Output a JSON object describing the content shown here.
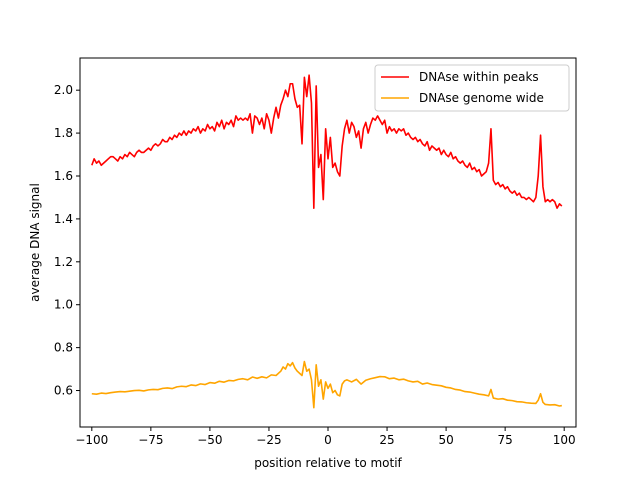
{
  "chart_data": {
    "type": "line",
    "title": "",
    "xlabel": "position relative to motif",
    "ylabel": "average DNA signal",
    "xlim": [
      -105,
      105
    ],
    "ylim": [
      0.43,
      2.15
    ],
    "xticks": [
      -100,
      -75,
      -50,
      -25,
      0,
      25,
      50,
      75,
      100
    ],
    "yticks": [
      0.6,
      0.8,
      1.0,
      1.2,
      1.4,
      1.6,
      1.8,
      2.0
    ],
    "xtick_labels": [
      "−100",
      "−75",
      "−50",
      "−25",
      "0",
      "25",
      "50",
      "75",
      "100"
    ],
    "ytick_labels": [
      "0.6",
      "0.8",
      "1.0",
      "1.2",
      "1.4",
      "1.6",
      "1.8",
      "2.0"
    ],
    "grid": false,
    "legend": "top-right",
    "series": [
      {
        "name": "DNAse within peaks",
        "color": "#ff0000",
        "points": [
          [
            -100,
            1.65
          ],
          [
            -99,
            1.68
          ],
          [
            -98,
            1.66
          ],
          [
            -97,
            1.67
          ],
          [
            -96,
            1.65
          ],
          [
            -95,
            1.66
          ],
          [
            -94,
            1.67
          ],
          [
            -93,
            1.68
          ],
          [
            -92,
            1.69
          ],
          [
            -91,
            1.69
          ],
          [
            -90,
            1.68
          ],
          [
            -89,
            1.67
          ],
          [
            -88,
            1.69
          ],
          [
            -87,
            1.68
          ],
          [
            -86,
            1.7
          ],
          [
            -85,
            1.69
          ],
          [
            -84,
            1.71
          ],
          [
            -83,
            1.7
          ],
          [
            -82,
            1.69
          ],
          [
            -81,
            1.71
          ],
          [
            -80,
            1.72
          ],
          [
            -79,
            1.71
          ],
          [
            -78,
            1.71
          ],
          [
            -77,
            1.72
          ],
          [
            -76,
            1.73
          ],
          [
            -75,
            1.72
          ],
          [
            -74,
            1.74
          ],
          [
            -73,
            1.75
          ],
          [
            -72,
            1.74
          ],
          [
            -71,
            1.75
          ],
          [
            -70,
            1.77
          ],
          [
            -69,
            1.76
          ],
          [
            -68,
            1.76
          ],
          [
            -67,
            1.78
          ],
          [
            -66,
            1.77
          ],
          [
            -65,
            1.79
          ],
          [
            -64,
            1.78
          ],
          [
            -63,
            1.8
          ],
          [
            -62,
            1.79
          ],
          [
            -61,
            1.81
          ],
          [
            -60,
            1.79
          ],
          [
            -59,
            1.81
          ],
          [
            -58,
            1.8
          ],
          [
            -57,
            1.82
          ],
          [
            -56,
            1.81
          ],
          [
            -55,
            1.83
          ],
          [
            -54,
            1.8
          ],
          [
            -53,
            1.82
          ],
          [
            -52,
            1.81
          ],
          [
            -51,
            1.84
          ],
          [
            -50,
            1.82
          ],
          [
            -49,
            1.83
          ],
          [
            -48,
            1.81
          ],
          [
            -47,
            1.85
          ],
          [
            -46,
            1.83
          ],
          [
            -45,
            1.86
          ],
          [
            -44,
            1.82
          ],
          [
            -43,
            1.85
          ],
          [
            -42,
            1.84
          ],
          [
            -41,
            1.86
          ],
          [
            -40,
            1.83
          ],
          [
            -39,
            1.88
          ],
          [
            -38,
            1.86
          ],
          [
            -37,
            1.87
          ],
          [
            -36,
            1.86
          ],
          [
            -35,
            1.87
          ],
          [
            -34,
            1.86
          ],
          [
            -33,
            1.89
          ],
          [
            -32,
            1.8
          ],
          [
            -31,
            1.88
          ],
          [
            -30,
            1.87
          ],
          [
            -29,
            1.84
          ],
          [
            -28,
            1.87
          ],
          [
            -27,
            1.82
          ],
          [
            -26,
            1.89
          ],
          [
            -25,
            1.86
          ],
          [
            -24,
            1.8
          ],
          [
            -23,
            1.87
          ],
          [
            -22,
            1.92
          ],
          [
            -21,
            1.87
          ],
          [
            -20,
            1.93
          ],
          [
            -19,
            1.96
          ],
          [
            -18,
            2.0
          ],
          [
            -17,
            1.97
          ],
          [
            -16,
            2.03
          ],
          [
            -15,
            2.03
          ],
          [
            -14,
            1.96
          ],
          [
            -13,
            1.92
          ],
          [
            -12,
            1.93
          ],
          [
            -11,
            1.75
          ],
          [
            -10,
            2.06
          ],
          [
            -9,
            1.97
          ],
          [
            -8,
            2.07
          ],
          [
            -7,
            1.94
          ],
          [
            -6,
            1.45
          ],
          [
            -5,
            2.02
          ],
          [
            -4,
            1.64
          ],
          [
            -3,
            1.7
          ],
          [
            -2,
            1.49
          ],
          [
            -1,
            1.82
          ],
          [
            0,
            1.68
          ],
          [
            1,
            1.78
          ],
          [
            2,
            1.64
          ],
          [
            3,
            1.66
          ],
          [
            4,
            1.62
          ],
          [
            5,
            1.6
          ],
          [
            6,
            1.74
          ],
          [
            7,
            1.82
          ],
          [
            8,
            1.86
          ],
          [
            9,
            1.8
          ],
          [
            10,
            1.85
          ],
          [
            11,
            1.83
          ],
          [
            12,
            1.78
          ],
          [
            13,
            1.81
          ],
          [
            14,
            1.73
          ],
          [
            15,
            1.82
          ],
          [
            16,
            1.85
          ],
          [
            17,
            1.8
          ],
          [
            18,
            1.84
          ],
          [
            19,
            1.87
          ],
          [
            20,
            1.86
          ],
          [
            21,
            1.88
          ],
          [
            22,
            1.86
          ],
          [
            23,
            1.84
          ],
          [
            24,
            1.86
          ],
          [
            25,
            1.8
          ],
          [
            26,
            1.83
          ],
          [
            27,
            1.81
          ],
          [
            28,
            1.82
          ],
          [
            29,
            1.8
          ],
          [
            30,
            1.82
          ],
          [
            31,
            1.81
          ],
          [
            32,
            1.82
          ],
          [
            33,
            1.79
          ],
          [
            34,
            1.8
          ],
          [
            35,
            1.78
          ],
          [
            36,
            1.77
          ],
          [
            37,
            1.78
          ],
          [
            38,
            1.76
          ],
          [
            39,
            1.77
          ],
          [
            40,
            1.75
          ],
          [
            41,
            1.74
          ],
          [
            42,
            1.76
          ],
          [
            43,
            1.72
          ],
          [
            44,
            1.74
          ],
          [
            45,
            1.73
          ],
          [
            46,
            1.72
          ],
          [
            47,
            1.73
          ],
          [
            48,
            1.7
          ],
          [
            49,
            1.72
          ],
          [
            50,
            1.7
          ],
          [
            51,
            1.69
          ],
          [
            52,
            1.71
          ],
          [
            53,
            1.68
          ],
          [
            54,
            1.69
          ],
          [
            55,
            1.67
          ],
          [
            56,
            1.66
          ],
          [
            57,
            1.67
          ],
          [
            58,
            1.65
          ],
          [
            59,
            1.64
          ],
          [
            60,
            1.66
          ],
          [
            61,
            1.63
          ],
          [
            62,
            1.64
          ],
          [
            63,
            1.62
          ],
          [
            64,
            1.63
          ],
          [
            65,
            1.6
          ],
          [
            66,
            1.61
          ],
          [
            67,
            1.62
          ],
          [
            68,
            1.66
          ],
          [
            69,
            1.82
          ],
          [
            70,
            1.58
          ],
          [
            71,
            1.56
          ],
          [
            72,
            1.57
          ],
          [
            73,
            1.55
          ],
          [
            74,
            1.56
          ],
          [
            75,
            1.54
          ],
          [
            76,
            1.55
          ],
          [
            77,
            1.53
          ],
          [
            78,
            1.52
          ],
          [
            79,
            1.53
          ],
          [
            80,
            1.51
          ],
          [
            81,
            1.52
          ],
          [
            82,
            1.5
          ],
          [
            83,
            1.5
          ],
          [
            84,
            1.49
          ],
          [
            85,
            1.5
          ],
          [
            86,
            1.49
          ],
          [
            87,
            1.48
          ],
          [
            88,
            1.5
          ],
          [
            89,
            1.6
          ],
          [
            90,
            1.79
          ],
          [
            91,
            1.55
          ],
          [
            92,
            1.48
          ],
          [
            93,
            1.49
          ],
          [
            94,
            1.48
          ],
          [
            95,
            1.49
          ],
          [
            96,
            1.48
          ],
          [
            97,
            1.45
          ],
          [
            98,
            1.47
          ],
          [
            99,
            1.46
          ]
        ]
      },
      {
        "name": "DNAse genome wide",
        "color": "#ffa500",
        "points": [
          [
            -100,
            0.585
          ],
          [
            -98,
            0.583
          ],
          [
            -96,
            0.588
          ],
          [
            -94,
            0.586
          ],
          [
            -92,
            0.59
          ],
          [
            -90,
            0.593
          ],
          [
            -88,
            0.595
          ],
          [
            -86,
            0.594
          ],
          [
            -84,
            0.597
          ],
          [
            -82,
            0.6
          ],
          [
            -80,
            0.601
          ],
          [
            -78,
            0.598
          ],
          [
            -76,
            0.603
          ],
          [
            -74,
            0.605
          ],
          [
            -72,
            0.604
          ],
          [
            -70,
            0.61
          ],
          [
            -68,
            0.612
          ],
          [
            -66,
            0.609
          ],
          [
            -64,
            0.617
          ],
          [
            -62,
            0.62
          ],
          [
            -60,
            0.618
          ],
          [
            -58,
            0.626
          ],
          [
            -56,
            0.623
          ],
          [
            -54,
            0.631
          ],
          [
            -52,
            0.628
          ],
          [
            -50,
            0.637
          ],
          [
            -48,
            0.634
          ],
          [
            -46,
            0.643
          ],
          [
            -44,
            0.639
          ],
          [
            -42,
            0.647
          ],
          [
            -40,
            0.645
          ],
          [
            -38,
            0.652
          ],
          [
            -36,
            0.655
          ],
          [
            -34,
            0.65
          ],
          [
            -32,
            0.663
          ],
          [
            -30,
            0.657
          ],
          [
            -28,
            0.664
          ],
          [
            -26,
            0.659
          ],
          [
            -24,
            0.673
          ],
          [
            -22,
            0.67
          ],
          [
            -20,
            0.69
          ],
          [
            -19,
            0.71
          ],
          [
            -18,
            0.7
          ],
          [
            -17,
            0.725
          ],
          [
            -16,
            0.715
          ],
          [
            -15,
            0.73
          ],
          [
            -14,
            0.705
          ],
          [
            -13,
            0.69
          ],
          [
            -12,
            0.68
          ],
          [
            -11,
            0.67
          ],
          [
            -10,
            0.735
          ],
          [
            -9,
            0.69
          ],
          [
            -8,
            0.7
          ],
          [
            -7,
            0.65
          ],
          [
            -6,
            0.52
          ],
          [
            -5,
            0.72
          ],
          [
            -4,
            0.62
          ],
          [
            -3,
            0.65
          ],
          [
            -2,
            0.56
          ],
          [
            -1,
            0.64
          ],
          [
            0,
            0.61
          ],
          [
            1,
            0.63
          ],
          [
            2,
            0.59
          ],
          [
            3,
            0.6
          ],
          [
            4,
            0.58
          ],
          [
            5,
            0.575
          ],
          [
            6,
            0.63
          ],
          [
            7,
            0.645
          ],
          [
            8,
            0.65
          ],
          [
            10,
            0.64
          ],
          [
            12,
            0.652
          ],
          [
            14,
            0.63
          ],
          [
            16,
            0.648
          ],
          [
            18,
            0.655
          ],
          [
            20,
            0.66
          ],
          [
            22,
            0.665
          ],
          [
            24,
            0.664
          ],
          [
            26,
            0.655
          ],
          [
            28,
            0.658
          ],
          [
            30,
            0.65
          ],
          [
            32,
            0.653
          ],
          [
            34,
            0.645
          ],
          [
            36,
            0.64
          ],
          [
            38,
            0.643
          ],
          [
            40,
            0.63
          ],
          [
            42,
            0.635
          ],
          [
            44,
            0.628
          ],
          [
            46,
            0.625
          ],
          [
            48,
            0.622
          ],
          [
            50,
            0.615
          ],
          [
            52,
            0.612
          ],
          [
            54,
            0.605
          ],
          [
            56,
            0.602
          ],
          [
            58,
            0.595
          ],
          [
            60,
            0.593
          ],
          [
            62,
            0.588
          ],
          [
            64,
            0.583
          ],
          [
            66,
            0.58
          ],
          [
            68,
            0.575
          ],
          [
            69,
            0.605
          ],
          [
            70,
            0.565
          ],
          [
            72,
            0.56
          ],
          [
            74,
            0.562
          ],
          [
            76,
            0.555
          ],
          [
            78,
            0.553
          ],
          [
            80,
            0.548
          ],
          [
            82,
            0.547
          ],
          [
            84,
            0.543
          ],
          [
            86,
            0.541
          ],
          [
            88,
            0.54
          ],
          [
            89,
            0.555
          ],
          [
            90,
            0.585
          ],
          [
            91,
            0.545
          ],
          [
            92,
            0.535
          ],
          [
            94,
            0.533
          ],
          [
            96,
            0.534
          ],
          [
            98,
            0.528
          ],
          [
            99,
            0.53
          ]
        ]
      }
    ]
  }
}
